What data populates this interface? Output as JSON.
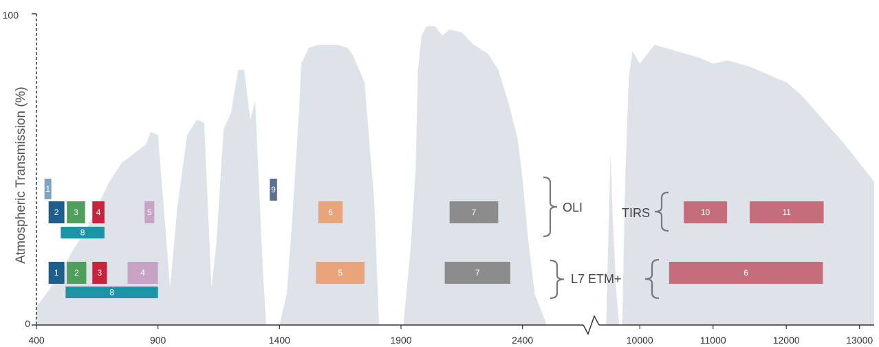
{
  "chart_data": {
    "type": "area",
    "ylabel": "Atmospheric Transmission (%)",
    "ylim": [
      0,
      100
    ],
    "y_ticks": [
      "100",
      "0"
    ],
    "x_segments": [
      {
        "unit": "nm",
        "range": [
          400,
          2650
        ],
        "ticks": [
          "400",
          "900",
          "1400",
          "1900",
          "2400"
        ]
      },
      {
        "unit": "nm",
        "range": [
          9500,
          13200
        ],
        "ticks": [
          "10000",
          "11000",
          "12000",
          "13000"
        ]
      }
    ],
    "colors": {
      "transmission": "#dde3e8",
      "axis": "#333333"
    },
    "transmission": [
      {
        "seg": 0,
        "points": [
          [
            400,
            0
          ],
          [
            400,
            6
          ],
          [
            450,
            11
          ],
          [
            500,
            17
          ],
          [
            550,
            24
          ],
          [
            600,
            30
          ],
          [
            650,
            38
          ],
          [
            700,
            46
          ],
          [
            750,
            52
          ],
          [
            800,
            55
          ],
          [
            850,
            58
          ],
          [
            870,
            62
          ],
          [
            900,
            61
          ],
          [
            950,
            12
          ],
          [
            980,
            38
          ],
          [
            1020,
            61
          ],
          [
            1060,
            66
          ],
          [
            1090,
            65
          ],
          [
            1110,
            30
          ],
          [
            1120,
            12
          ],
          [
            1140,
            26
          ],
          [
            1170,
            63
          ],
          [
            1200,
            68
          ],
          [
            1230,
            82
          ],
          [
            1255,
            82
          ],
          [
            1280,
            66
          ],
          [
            1300,
            72
          ],
          [
            1330,
            20
          ],
          [
            1345,
            0
          ]
        ]
      },
      {
        "seg": 0,
        "points": [
          [
            1400,
            0
          ],
          [
            1430,
            10
          ],
          [
            1450,
            31
          ],
          [
            1480,
            68
          ],
          [
            1490,
            84
          ],
          [
            1520,
            89
          ],
          [
            1560,
            90
          ],
          [
            1600,
            90
          ],
          [
            1640,
            90
          ],
          [
            1680,
            89
          ],
          [
            1700,
            87
          ],
          [
            1750,
            78
          ],
          [
            1790,
            40
          ],
          [
            1810,
            0
          ]
        ]
      },
      {
        "seg": 0,
        "points": [
          [
            1910,
            0
          ],
          [
            1940,
            25
          ],
          [
            1960,
            50
          ],
          [
            1970,
            82
          ],
          [
            1985,
            93
          ],
          [
            2005,
            96
          ],
          [
            2040,
            96
          ],
          [
            2070,
            93
          ],
          [
            2100,
            95
          ],
          [
            2150,
            94
          ],
          [
            2200,
            90
          ],
          [
            2260,
            87
          ],
          [
            2300,
            82
          ],
          [
            2340,
            72
          ],
          [
            2380,
            60
          ],
          [
            2400,
            47
          ],
          [
            2420,
            30
          ],
          [
            2450,
            10
          ],
          [
            2500,
            0
          ]
        ]
      },
      {
        "seg": 1,
        "points": [
          [
            9540,
            0
          ],
          [
            9600,
            55
          ],
          [
            9630,
            35
          ],
          [
            9680,
            10
          ],
          [
            9720,
            0
          ]
        ]
      },
      {
        "seg": 1,
        "points": [
          [
            9760,
            0
          ],
          [
            9800,
            46
          ],
          [
            9850,
            80
          ],
          [
            9900,
            88
          ],
          [
            10000,
            84
          ],
          [
            10200,
            90
          ],
          [
            10500,
            88
          ],
          [
            10800,
            86
          ],
          [
            11000,
            84
          ],
          [
            11200,
            85
          ],
          [
            11500,
            83
          ],
          [
            11800,
            80
          ],
          [
            12000,
            78
          ],
          [
            12200,
            74
          ],
          [
            12500,
            66
          ],
          [
            12800,
            58
          ],
          [
            13000,
            52
          ],
          [
            13200,
            46
          ],
          [
            13200,
            0
          ]
        ]
      }
    ],
    "oli_bands": [
      {
        "label": "1",
        "seg": 0,
        "x": [
          433,
          453
        ],
        "color": "#7fa4c0"
      },
      {
        "label": "2",
        "seg": 0,
        "x": [
          450,
          515
        ],
        "color": "#1d5e8c"
      },
      {
        "label": "3",
        "seg": 0,
        "x": [
          525,
          600
        ],
        "color": "#4f9e5c"
      },
      {
        "label": "4",
        "seg": 0,
        "x": [
          630,
          680
        ],
        "color": "#c8223d"
      },
      {
        "label": "5",
        "seg": 0,
        "x": [
          845,
          885
        ],
        "color": "#c9a3c6"
      },
      {
        "label": "8",
        "seg": 0,
        "x": [
          500,
          680
        ],
        "color": "#1e93a6"
      },
      {
        "label": "9",
        "seg": 0,
        "x": [
          1360,
          1390
        ],
        "color": "#5c6f8e"
      },
      {
        "label": "6",
        "seg": 0,
        "x": [
          1560,
          1660
        ],
        "color": "#e8a57a"
      },
      {
        "label": "7",
        "seg": 0,
        "x": [
          2100,
          2300
        ],
        "color": "#8c8c8c"
      },
      {
        "label": "10",
        "seg": 1,
        "x": [
          10600,
          11190
        ],
        "color": "#c46d7b"
      },
      {
        "label": "11",
        "seg": 1,
        "x": [
          11500,
          12510
        ],
        "color": "#c46d7b"
      }
    ],
    "etm_bands": [
      {
        "label": "1",
        "seg": 0,
        "x": [
          450,
          515
        ],
        "color": "#1d5e8c"
      },
      {
        "label": "2",
        "seg": 0,
        "x": [
          525,
          605
        ],
        "color": "#4f9e5c"
      },
      {
        "label": "3",
        "seg": 0,
        "x": [
          630,
          690
        ],
        "color": "#c8223d"
      },
      {
        "label": "4",
        "seg": 0,
        "x": [
          775,
          900
        ],
        "color": "#c9a3c6"
      },
      {
        "label": "8",
        "seg": 0,
        "x": [
          520,
          900
        ],
        "color": "#1e93a6"
      },
      {
        "label": "5",
        "seg": 0,
        "x": [
          1550,
          1750
        ],
        "color": "#e8a57a"
      },
      {
        "label": "7",
        "seg": 0,
        "x": [
          2080,
          2350
        ],
        "color": "#8c8c8c"
      },
      {
        "label": "6",
        "seg": 1,
        "x": [
          10400,
          12500
        ],
        "color": "#c46d7b"
      }
    ],
    "sensor_labels": {
      "oli": "OLI",
      "tirs": "TIRS",
      "etm": "L7 ETM+"
    }
  }
}
